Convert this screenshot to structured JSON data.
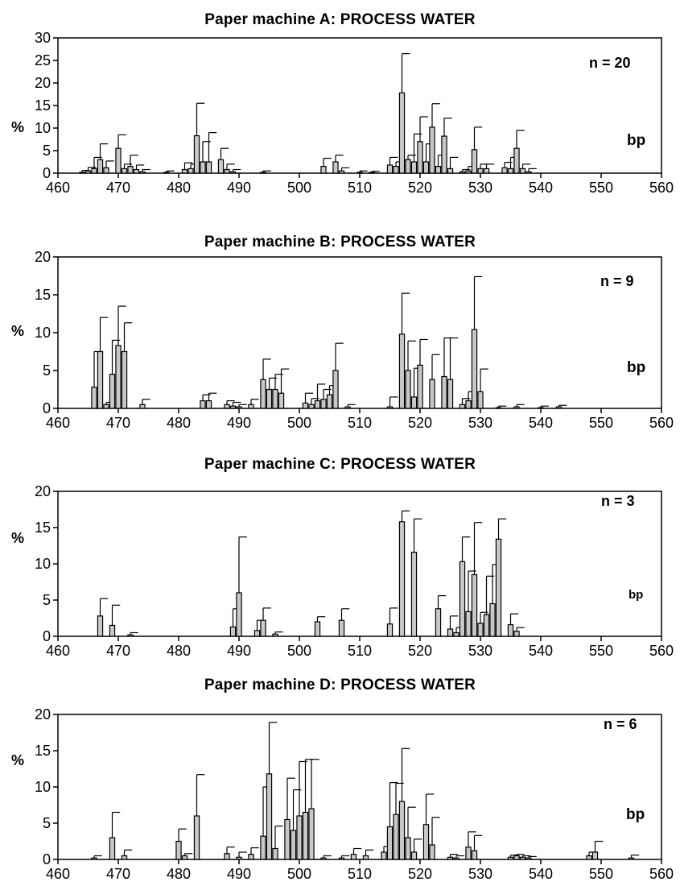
{
  "chart_data": [
    {
      "type": "bar",
      "title": "Paper machine A: PROCESS WATER",
      "n_label": "n = 20",
      "xlabel": "bp",
      "ylabel": "%",
      "xlim": [
        460,
        560
      ],
      "ylim": [
        0,
        30
      ],
      "xticks": [
        460,
        470,
        480,
        490,
        500,
        510,
        520,
        530,
        540,
        550,
        560
      ],
      "yticks": [
        0,
        5,
        10,
        15,
        20,
        25,
        30
      ],
      "grid": false,
      "bars": [
        {
          "x": 464,
          "y": 0.2,
          "err": 0.4
        },
        {
          "x": 465,
          "y": 0.5,
          "err": 0.8
        },
        {
          "x": 466,
          "y": 1.0,
          "err": 2.5
        },
        {
          "x": 467,
          "y": 3.0,
          "err": 3.5
        },
        {
          "x": 468,
          "y": 1.2,
          "err": 1.5
        },
        {
          "x": 470,
          "y": 5.5,
          "err": 3.0
        },
        {
          "x": 471,
          "y": 1.0,
          "err": 1.0
        },
        {
          "x": 472,
          "y": 1.5,
          "err": 2.5
        },
        {
          "x": 473,
          "y": 0.8,
          "err": 1.0
        },
        {
          "x": 474,
          "y": 0.3,
          "err": 0.5
        },
        {
          "x": 478,
          "y": 0.2,
          "err": 0.3
        },
        {
          "x": 481,
          "y": 0.8,
          "err": 1.5
        },
        {
          "x": 482,
          "y": 1.0,
          "err": 1.0
        },
        {
          "x": 483,
          "y": 8.3,
          "err": 7.2
        },
        {
          "x": 484,
          "y": 2.5,
          "err": 4.5
        },
        {
          "x": 485,
          "y": 2.5,
          "err": 6.5
        },
        {
          "x": 487,
          "y": 3.0,
          "err": 2.5
        },
        {
          "x": 488,
          "y": 0.8,
          "err": 1.2
        },
        {
          "x": 489,
          "y": 0.3,
          "err": 0.5
        },
        {
          "x": 494,
          "y": 0.2,
          "err": 0.3
        },
        {
          "x": 504,
          "y": 1.5,
          "err": 1.8
        },
        {
          "x": 506,
          "y": 2.5,
          "err": 1.5
        },
        {
          "x": 507,
          "y": 0.5,
          "err": 0.7
        },
        {
          "x": 510,
          "y": 0.2,
          "err": 0.3
        },
        {
          "x": 512,
          "y": 0.2,
          "err": 0.2
        },
        {
          "x": 515,
          "y": 1.8,
          "err": 1.7
        },
        {
          "x": 516,
          "y": 1.5,
          "err": 1.0
        },
        {
          "x": 517,
          "y": 17.8,
          "err": 8.7
        },
        {
          "x": 518,
          "y": 3.0,
          "err": 1.0
        },
        {
          "x": 519,
          "y": 2.5,
          "err": 6.2
        },
        {
          "x": 520,
          "y": 7.0,
          "err": 5.5
        },
        {
          "x": 521,
          "y": 2.5,
          "err": 4.0
        },
        {
          "x": 522,
          "y": 10.2,
          "err": 5.2
        },
        {
          "x": 523,
          "y": 1.5,
          "err": 2.5
        },
        {
          "x": 524,
          "y": 8.2,
          "err": 4.0
        },
        {
          "x": 525,
          "y": 1.0,
          "err": 2.5
        },
        {
          "x": 527,
          "y": 0.3,
          "err": 0.5
        },
        {
          "x": 528,
          "y": 0.5,
          "err": 1.0
        },
        {
          "x": 529,
          "y": 5.2,
          "err": 5.0
        },
        {
          "x": 530,
          "y": 1.0,
          "err": 1.0
        },
        {
          "x": 531,
          "y": 1.0,
          "err": 1.0
        },
        {
          "x": 534,
          "y": 1.2,
          "err": 1.2
        },
        {
          "x": 535,
          "y": 1.0,
          "err": 2.5
        },
        {
          "x": 536,
          "y": 5.5,
          "err": 4.0
        },
        {
          "x": 537,
          "y": 1.0,
          "err": 1.0
        },
        {
          "x": 538,
          "y": 0.3,
          "err": 0.7
        }
      ]
    },
    {
      "type": "bar",
      "title": "Paper machine B: PROCESS WATER",
      "n_label": "n = 9",
      "xlabel": "bp",
      "ylabel": "%",
      "xlim": [
        460,
        560
      ],
      "ylim": [
        0,
        20
      ],
      "xticks": [
        460,
        470,
        480,
        490,
        500,
        510,
        520,
        530,
        540,
        550,
        560
      ],
      "yticks": [
        0,
        5,
        10,
        15,
        20
      ],
      "grid": false,
      "bars": [
        {
          "x": 466,
          "y": 2.8,
          "err": 4.7
        },
        {
          "x": 467,
          "y": 7.5,
          "err": 4.5
        },
        {
          "x": 468,
          "y": 0.5,
          "err": 0.3
        },
        {
          "x": 469,
          "y": 4.5,
          "err": 4.5
        },
        {
          "x": 470,
          "y": 8.3,
          "err": 5.2
        },
        {
          "x": 471,
          "y": 7.5,
          "err": 3.8
        },
        {
          "x": 474,
          "y": 0.5,
          "err": 0.7
        },
        {
          "x": 484,
          "y": 1.0,
          "err": 0.8
        },
        {
          "x": 485,
          "y": 1.0,
          "err": 1.0
        },
        {
          "x": 488,
          "y": 0.5,
          "err": 0.5
        },
        {
          "x": 489,
          "y": 0.3,
          "err": 0.5
        },
        {
          "x": 490,
          "y": 0.2,
          "err": 0.3
        },
        {
          "x": 492,
          "y": 0.5,
          "err": 0.7
        },
        {
          "x": 494,
          "y": 3.8,
          "err": 2.7
        },
        {
          "x": 495,
          "y": 2.5,
          "err": 1.5
        },
        {
          "x": 496,
          "y": 2.5,
          "err": 2.0
        },
        {
          "x": 497,
          "y": 2.0,
          "err": 3.2
        },
        {
          "x": 501,
          "y": 0.7,
          "err": 1.3
        },
        {
          "x": 502,
          "y": 0.5,
          "err": 0.8
        },
        {
          "x": 503,
          "y": 1.0,
          "err": 2.2
        },
        {
          "x": 504,
          "y": 1.2,
          "err": 1.3
        },
        {
          "x": 505,
          "y": 1.8,
          "err": 1.2
        },
        {
          "x": 506,
          "y": 5.0,
          "err": 3.6
        },
        {
          "x": 508,
          "y": 0.2,
          "err": 0.3
        },
        {
          "x": 515,
          "y": 0.2,
          "err": 1.3
        },
        {
          "x": 517,
          "y": 9.8,
          "err": 5.4
        },
        {
          "x": 518,
          "y": 5.0,
          "err": 3.9
        },
        {
          "x": 519,
          "y": 1.5,
          "err": 3.8
        },
        {
          "x": 520,
          "y": 5.7,
          "err": 3.4
        },
        {
          "x": 522,
          "y": 3.8,
          "err": 3.3
        },
        {
          "x": 524,
          "y": 4.2,
          "err": 5.1
        },
        {
          "x": 525,
          "y": 3.8,
          "err": 5.5
        },
        {
          "x": 527,
          "y": 0.5,
          "err": 0.8
        },
        {
          "x": 528,
          "y": 1.0,
          "err": 1.2
        },
        {
          "x": 529,
          "y": 10.4,
          "err": 7.0
        },
        {
          "x": 530,
          "y": 2.2,
          "err": 3.0
        },
        {
          "x": 533,
          "y": 0.1,
          "err": 0.2
        },
        {
          "x": 536,
          "y": 0.2,
          "err": 0.3
        },
        {
          "x": 540,
          "y": 0.1,
          "err": 0.2
        },
        {
          "x": 543,
          "y": 0.2,
          "err": 0.2
        }
      ]
    },
    {
      "type": "bar",
      "title": "Paper machine C: PROCESS WATER",
      "n_label": "n = 3",
      "xlabel": "bp",
      "ylabel": "%",
      "xlim": [
        460,
        560
      ],
      "ylim": [
        0,
        20
      ],
      "xticks": [
        460,
        470,
        480,
        490,
        500,
        510,
        520,
        530,
        540,
        550,
        560
      ],
      "yticks": [
        0,
        5,
        10,
        15,
        20
      ],
      "grid": false,
      "bars": [
        {
          "x": 467,
          "y": 2.8,
          "err": 2.4
        },
        {
          "x": 469,
          "y": 1.5,
          "err": 2.8
        },
        {
          "x": 472,
          "y": 0.2,
          "err": 0.3
        },
        {
          "x": 489,
          "y": 1.3,
          "err": 2.5
        },
        {
          "x": 490,
          "y": 6.0,
          "err": 7.7
        },
        {
          "x": 493,
          "y": 0.8,
          "err": 1.4
        },
        {
          "x": 494,
          "y": 2.2,
          "err": 1.7
        },
        {
          "x": 496,
          "y": 0.3,
          "err": 0.3
        },
        {
          "x": 503,
          "y": 2.0,
          "err": 0.7
        },
        {
          "x": 507,
          "y": 2.2,
          "err": 1.6
        },
        {
          "x": 515,
          "y": 1.7,
          "err": 2.2
        },
        {
          "x": 517,
          "y": 15.8,
          "err": 1.5
        },
        {
          "x": 519,
          "y": 11.6,
          "err": 4.6
        },
        {
          "x": 523,
          "y": 3.8,
          "err": 1.8
        },
        {
          "x": 525,
          "y": 1.0,
          "err": 1.8
        },
        {
          "x": 526,
          "y": 0.5,
          "err": 0.7
        },
        {
          "x": 527,
          "y": 10.3,
          "err": 3.4
        },
        {
          "x": 528,
          "y": 3.4,
          "err": 5.6
        },
        {
          "x": 529,
          "y": 8.5,
          "err": 7.2
        },
        {
          "x": 530,
          "y": 1.8,
          "err": 1.5
        },
        {
          "x": 531,
          "y": 3.0,
          "err": 5.3
        },
        {
          "x": 532,
          "y": 4.5,
          "err": 5.4
        },
        {
          "x": 533,
          "y": 13.4,
          "err": 2.8
        },
        {
          "x": 535,
          "y": 1.6,
          "err": 1.5
        },
        {
          "x": 536,
          "y": 0.7,
          "err": 0.5
        }
      ]
    },
    {
      "type": "bar",
      "title": "Paper machine D: PROCESS WATER",
      "n_label": "n = 6",
      "xlabel": "bp",
      "ylabel": "%",
      "xlim": [
        460,
        560
      ],
      "ylim": [
        0,
        20
      ],
      "xticks": [
        460,
        470,
        480,
        490,
        500,
        510,
        520,
        530,
        540,
        550,
        560
      ],
      "yticks": [
        0,
        5,
        10,
        15,
        20
      ],
      "grid": false,
      "bars": [
        {
          "x": 466,
          "y": 0.2,
          "err": 0.3
        },
        {
          "x": 469,
          "y": 3.0,
          "err": 3.5
        },
        {
          "x": 471,
          "y": 0.5,
          "err": 0.8
        },
        {
          "x": 480,
          "y": 2.5,
          "err": 1.7
        },
        {
          "x": 481,
          "y": 0.5,
          "err": 0.3
        },
        {
          "x": 483,
          "y": 6.0,
          "err": 5.7
        },
        {
          "x": 488,
          "y": 0.8,
          "err": 0.9
        },
        {
          "x": 490,
          "y": 0.3,
          "err": 0.7
        },
        {
          "x": 492,
          "y": 0.7,
          "err": 0.9
        },
        {
          "x": 494,
          "y": 3.2,
          "err": 6.8
        },
        {
          "x": 495,
          "y": 11.8,
          "err": 7.1
        },
        {
          "x": 496,
          "y": 1.5,
          "err": 3.1
        },
        {
          "x": 498,
          "y": 5.5,
          "err": 5.7
        },
        {
          "x": 499,
          "y": 4.0,
          "err": 5.6
        },
        {
          "x": 500,
          "y": 6.0,
          "err": 7.5
        },
        {
          "x": 501,
          "y": 6.5,
          "err": 7.3
        },
        {
          "x": 502,
          "y": 7.0,
          "err": 6.8
        },
        {
          "x": 504,
          "y": 0.2,
          "err": 0.3
        },
        {
          "x": 507,
          "y": 0.2,
          "err": 0.3
        },
        {
          "x": 509,
          "y": 0.7,
          "err": 0.8
        },
        {
          "x": 511,
          "y": 0.5,
          "err": 0.8
        },
        {
          "x": 514,
          "y": 1.0,
          "err": 0.8
        },
        {
          "x": 515,
          "y": 4.5,
          "err": 6.1
        },
        {
          "x": 516,
          "y": 6.2,
          "err": 4.3
        },
        {
          "x": 517,
          "y": 8.0,
          "err": 7.3
        },
        {
          "x": 518,
          "y": 3.0,
          "err": 4.2
        },
        {
          "x": 519,
          "y": 1.0,
          "err": 1.8
        },
        {
          "x": 521,
          "y": 4.8,
          "err": 4.2
        },
        {
          "x": 522,
          "y": 2.0,
          "err": 3.8
        },
        {
          "x": 525,
          "y": 0.3,
          "err": 0.4
        },
        {
          "x": 526,
          "y": 0.2,
          "err": 0.3
        },
        {
          "x": 528,
          "y": 1.7,
          "err": 2.1
        },
        {
          "x": 529,
          "y": 1.2,
          "err": 2.1
        },
        {
          "x": 535,
          "y": 0.3,
          "err": 0.3
        },
        {
          "x": 536,
          "y": 0.5,
          "err": 0.2
        },
        {
          "x": 537,
          "y": 0.3,
          "err": 0.2
        },
        {
          "x": 538,
          "y": 0.2,
          "err": 0.2
        },
        {
          "x": 548,
          "y": 0.5,
          "err": 0.5
        },
        {
          "x": 549,
          "y": 1.0,
          "err": 1.5
        },
        {
          "x": 555,
          "y": 0.2,
          "err": 0.4
        }
      ]
    }
  ],
  "style": {
    "bar_fill": "#c8c8c8",
    "bar_stroke": "#000000",
    "axis_color": "#000000"
  }
}
